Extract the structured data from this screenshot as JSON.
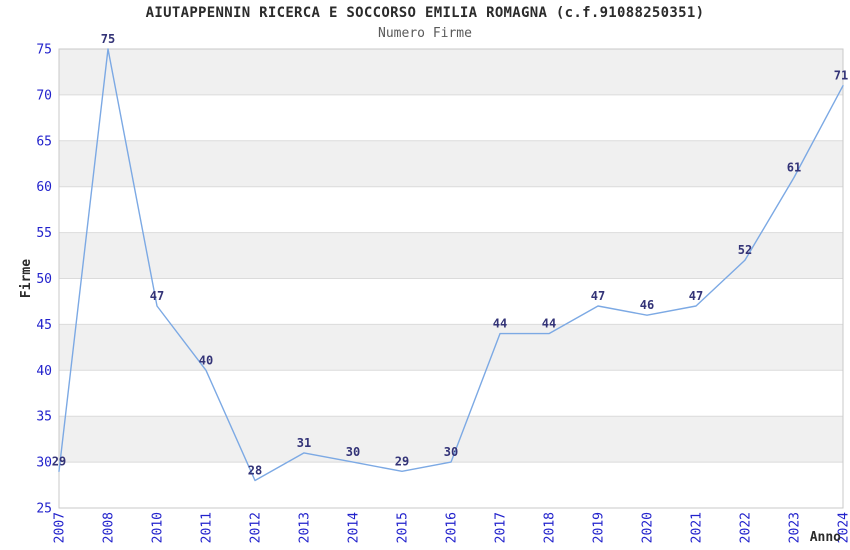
{
  "chart_data": {
    "type": "line",
    "title": "AIUTAPPENNIN RICERCA E SOCCORSO EMILIA ROMAGNA (c.f.91088250351)",
    "subtitle": "Numero Firme",
    "xlabel": "Anno",
    "ylabel": "Firme",
    "categories": [
      "2007",
      "2008",
      "2010",
      "2011",
      "2012",
      "2013",
      "2014",
      "2015",
      "2016",
      "2017",
      "2018",
      "2019",
      "2020",
      "2021",
      "2022",
      "2023",
      "2024"
    ],
    "values": [
      29,
      75,
      47,
      40,
      28,
      31,
      30,
      29,
      30,
      44,
      44,
      47,
      46,
      47,
      52,
      61,
      71
    ],
    "point_labels": [
      "29",
      "75",
      "47",
      "40",
      "28",
      "31",
      "30",
      "29",
      "30",
      "44",
      "44",
      "47",
      "46",
      "47",
      "52",
      "61",
      "71"
    ],
    "ylim": [
      25,
      75
    ],
    "ytick_step": 5,
    "ytick_labels": [
      "25",
      "30",
      "35",
      "40",
      "45",
      "50",
      "55",
      "60",
      "65",
      "70",
      "75"
    ],
    "grid": "horizontal-alternating-bands",
    "legend": "none",
    "x_tick_rotation_degrees": 90,
    "colors": {
      "line": "#7CA9E4",
      "tick_label": "#2222CC",
      "point_label": "#333377",
      "band_gray": "#F0F0F0",
      "band_white": "#FFFFFF",
      "gridline": "#DBDBDB",
      "border": "#C9C9C9",
      "title": "#2B2B2B",
      "subtitle": "#5A5A5A",
      "axis_title": "#2B2B2B"
    }
  }
}
